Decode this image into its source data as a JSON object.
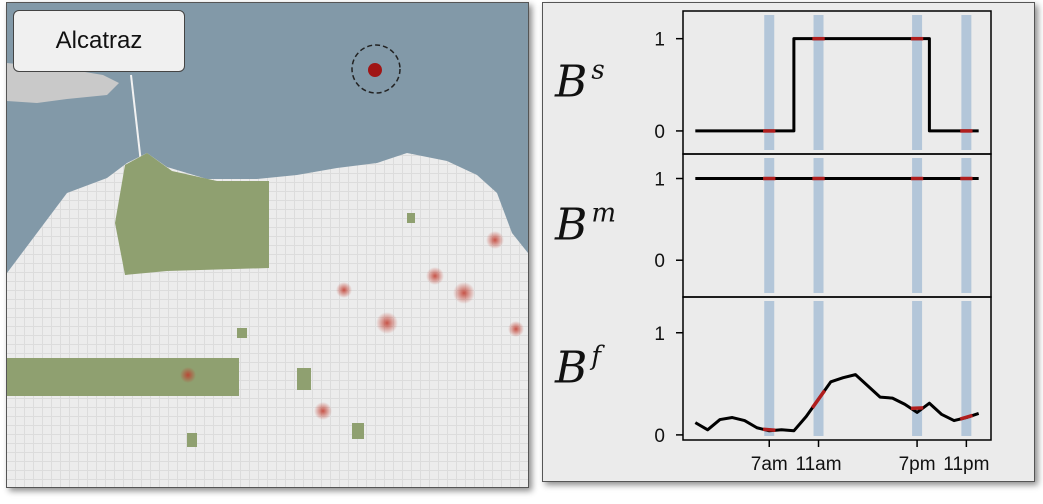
{
  "map": {
    "label": "Alcatraz",
    "colors": {
      "water": "#8299a8",
      "land": "#e8e8e8",
      "park": "#8fa070",
      "hotspot": "#c0392b",
      "alcatraz": "#a01515"
    }
  },
  "chart_data": {
    "type": "line",
    "highlight_times": [
      "7am",
      "11am",
      "7pm",
      "11pm"
    ],
    "x_tick_labels": [
      "7am",
      "11am",
      "7pm",
      "11pm"
    ],
    "x_tick_values": [
      7,
      11,
      19,
      23
    ],
    "xlim": [
      0,
      25
    ],
    "colors": {
      "line": "#000000",
      "highlight": "#b01e1e",
      "band": "#a9c0d6"
    },
    "panels": [
      {
        "label_main": "B",
        "label_sup": "s",
        "ylim": [
          -0.25,
          1.3
        ],
        "yticks": [
          0,
          1
        ],
        "ytick_labels": [
          "0",
          "1"
        ],
        "step": true,
        "x": [
          1,
          9,
          9,
          20,
          20,
          24
        ],
        "y": [
          0,
          0,
          1,
          1,
          0,
          0
        ]
      },
      {
        "label_main": "B",
        "label_sup": "m",
        "ylim": [
          -0.45,
          1.3
        ],
        "yticks": [
          0,
          1
        ],
        "ytick_labels": [
          "0",
          "1"
        ],
        "step": false,
        "x": [
          1,
          24
        ],
        "y": [
          1,
          1
        ]
      },
      {
        "label_main": "B",
        "label_sup": "f",
        "ylim": [
          -0.05,
          1.35
        ],
        "yticks": [
          0,
          1
        ],
        "ytick_labels": [
          "0",
          "1"
        ],
        "step": false,
        "x": [
          1,
          2,
          3,
          4,
          5,
          6,
          7,
          8,
          9,
          10,
          11,
          12,
          13,
          14,
          15,
          16,
          17,
          18,
          19,
          20,
          21,
          22,
          23,
          24
        ],
        "y": [
          0.12,
          0.05,
          0.15,
          0.17,
          0.14,
          0.07,
          0.04,
          0.05,
          0.04,
          0.18,
          0.35,
          0.52,
          0.56,
          0.59,
          0.48,
          0.37,
          0.36,
          0.3,
          0.22,
          0.31,
          0.2,
          0.14,
          0.17,
          0.21
        ]
      }
    ]
  }
}
